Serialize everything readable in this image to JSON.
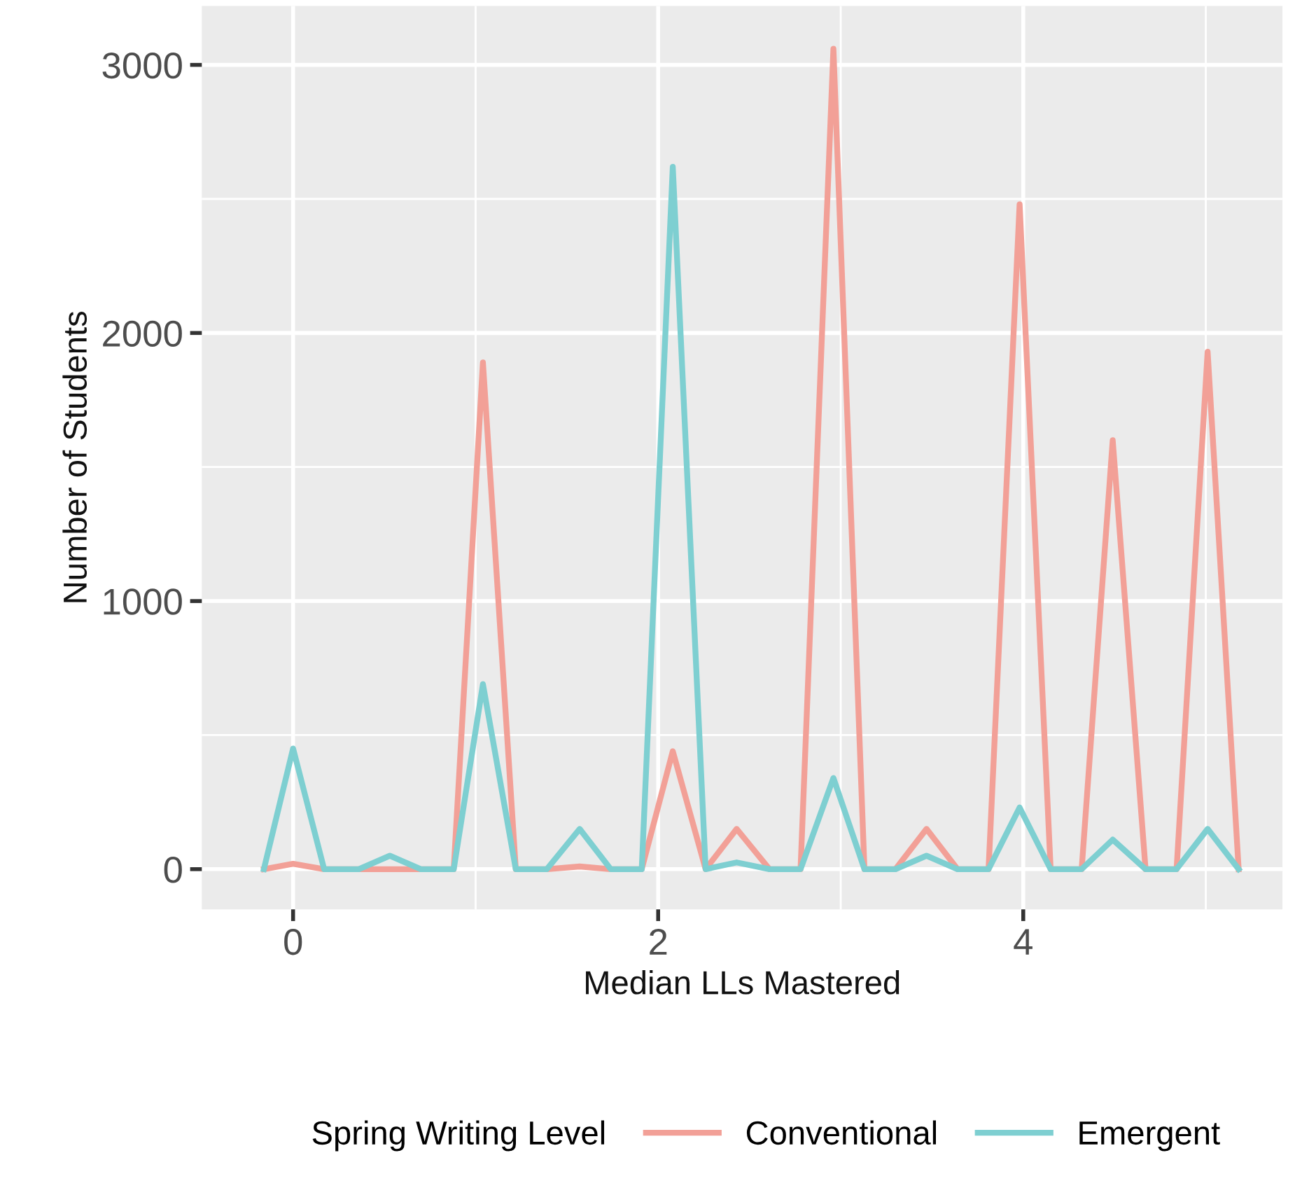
{
  "chart_data": {
    "type": "line",
    "xlabel": "Median LLs Mastered",
    "ylabel": "Number of Students",
    "legend_title": "Spring Writing Level",
    "x": [
      -0.16,
      0,
      0.17,
      0.36,
      0.53,
      0.7,
      0.88,
      1.04,
      1.22,
      1.39,
      1.57,
      1.74,
      1.91,
      2.08,
      2.26,
      2.43,
      2.61,
      2.78,
      2.96,
      3.13,
      3.3,
      3.47,
      3.64,
      3.81,
      3.98,
      4.15,
      4.32,
      4.49,
      4.67,
      4.84,
      5.01,
      5.18
    ],
    "series": [
      {
        "name": "Conventional",
        "color": "#f2a097",
        "values": [
          0,
          20,
          0,
          0,
          0,
          0,
          0,
          1890,
          0,
          0,
          10,
          0,
          0,
          440,
          0,
          150,
          0,
          0,
          3060,
          0,
          0,
          150,
          0,
          0,
          2480,
          0,
          0,
          1600,
          0,
          0,
          1930,
          0
        ]
      },
      {
        "name": "Emergent",
        "color": "#7ecfd1",
        "values": [
          0,
          450,
          0,
          0,
          50,
          0,
          0,
          690,
          0,
          0,
          150,
          0,
          0,
          2620,
          0,
          25,
          0,
          0,
          340,
          0,
          0,
          50,
          0,
          0,
          230,
          0,
          0,
          110,
          0,
          0,
          150,
          0
        ]
      }
    ],
    "xlim": [
      -0.5,
      5.42
    ],
    "ylim": [
      -150,
      3220
    ],
    "xticks": [
      0,
      2,
      4
    ],
    "yticks": [
      0,
      1000,
      2000,
      3000
    ],
    "grid": true,
    "legend": "bottom",
    "line_style": "solid"
  }
}
